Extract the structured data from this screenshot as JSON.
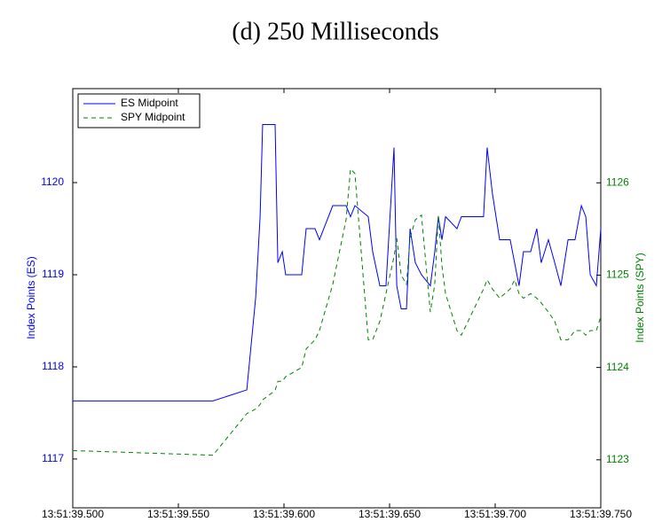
{
  "chart_data": {
    "type": "line",
    "title": "(d) 250 Milliseconds",
    "ylabel": "Index Points (ES)",
    "y2label": "Index Points (SPY)",
    "x": [
      39.5,
      39.5664,
      39.5824,
      39.5866,
      39.5887,
      39.5899,
      39.5958,
      39.5971,
      39.5992,
      39.6008,
      39.6084,
      39.6105,
      39.6147,
      39.6168,
      39.6231,
      39.6294,
      39.6315,
      39.6336,
      39.6399,
      39.642,
      39.6454,
      39.6483,
      39.6521,
      39.6534,
      39.6555,
      39.658,
      39.6597,
      39.6622,
      39.6651,
      39.6693,
      39.6714,
      39.6731,
      39.6748,
      39.6765,
      39.6819,
      39.684,
      39.6945,
      39.6962,
      39.6987,
      39.7021,
      39.7071,
      39.7092,
      39.7113,
      39.7134,
      39.7168,
      39.7197,
      39.7218,
      39.7252,
      39.7282,
      39.7311,
      39.7345,
      39.7378,
      39.7408,
      39.7429,
      39.745,
      39.7479,
      39.75
    ],
    "series": [
      {
        "name": "ES Midpoint",
        "color": "#0000ff",
        "dash": false,
        "axis": "y",
        "values": [
          1117.63,
          1117.63,
          1117.75,
          1118.75,
          1119.63,
          1120.63,
          1120.63,
          1119.13,
          1119.25,
          1119.0,
          1119.0,
          1119.5,
          1119.5,
          1119.38,
          1119.75,
          1119.75,
          1119.63,
          1119.75,
          1119.63,
          1119.25,
          1118.88,
          1118.88,
          1120.38,
          1118.88,
          1118.63,
          1118.63,
          1119.5,
          1119.13,
          1119.0,
          1118.88,
          1119.25,
          1119.63,
          1119.38,
          1119.63,
          1119.5,
          1119.63,
          1119.63,
          1120.38,
          1119.88,
          1119.38,
          1119.38,
          1119.13,
          1118.88,
          1119.25,
          1119.25,
          1119.5,
          1119.13,
          1119.38,
          1119.13,
          1118.88,
          1119.38,
          1119.38,
          1119.75,
          1119.63,
          1119.0,
          1118.88,
          1119.5
        ]
      },
      {
        "name": "SPY Midpoint",
        "color": "#008000",
        "dash": true,
        "axis": "y2",
        "values": [
          1123.1,
          1123.05,
          1123.5,
          1123.55,
          1123.6,
          1123.65,
          1123.75,
          1123.85,
          1123.85,
          1123.9,
          1124.0,
          1124.2,
          1124.3,
          1124.4,
          1124.9,
          1125.6,
          1126.15,
          1126.1,
          1124.3,
          1124.3,
          1124.5,
          1124.8,
          1125.2,
          1125.4,
          1125.0,
          1124.9,
          1125.4,
          1125.6,
          1125.65,
          1124.6,
          1124.9,
          1125.65,
          1125.1,
          1124.8,
          1124.4,
          1124.35,
          1124.85,
          1124.95,
          1124.85,
          1124.75,
          1124.85,
          1124.95,
          1124.8,
          1124.75,
          1124.8,
          1124.75,
          1124.7,
          1124.6,
          1124.5,
          1124.3,
          1124.3,
          1124.4,
          1124.4,
          1124.35,
          1124.4,
          1124.4,
          1124.55
        ]
      }
    ],
    "xlim": [
      39.5,
      39.75
    ],
    "xticks": [
      {
        "value": 39.5,
        "label": "13:51:39.500"
      },
      {
        "value": 39.55,
        "label": "13:51:39.550"
      },
      {
        "value": 39.6,
        "label": "13:51:39.600"
      },
      {
        "value": 39.65,
        "label": "13:51:39.650"
      },
      {
        "value": 39.7,
        "label": "13:51:39.700"
      },
      {
        "value": 39.75,
        "label": "13:51:39.750"
      }
    ],
    "ylim": [
      1116.47,
      1121.02
    ],
    "yticks": [
      1117,
      1118,
      1119,
      1120
    ],
    "y2lim": [
      1122.48,
      1127.02
    ],
    "y2ticks": [
      1123,
      1124,
      1125,
      1126
    ],
    "legend": "upper-left"
  }
}
